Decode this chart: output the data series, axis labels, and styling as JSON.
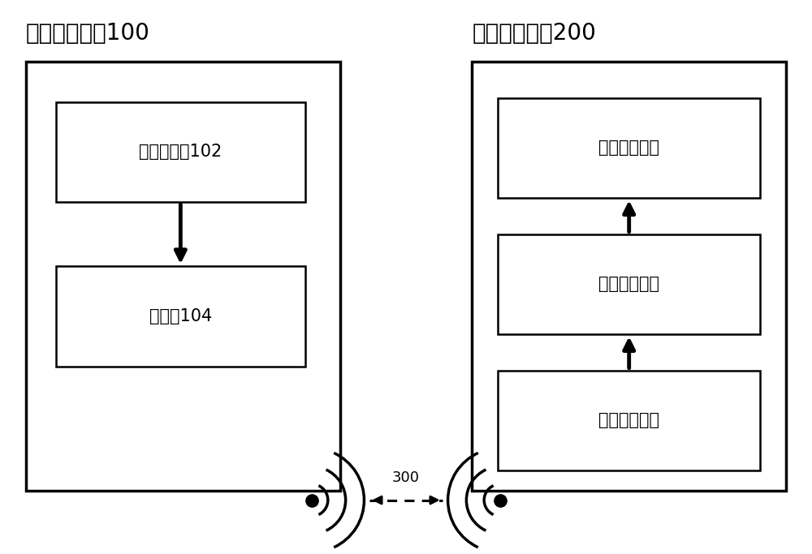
{
  "bg_color": "#ffffff",
  "title_left": "数据采集设备100",
  "title_right": "数据分析设备200",
  "label_300": "300",
  "box_left_label1": "声压传感器102",
  "box_left_label2": "处理器104",
  "box_right_label_top": "数据展示模块",
  "box_right_label_mid": "数据监测模块",
  "box_right_label_bot": "数据分析模块",
  "font_size_title": 20,
  "font_size_box": 15,
  "font_size_label": 13,
  "line_color": "#000000",
  "lw_outer": 2.5,
  "lw_inner": 1.8,
  "lw_arrow": 3.5,
  "lw_arc": 2.5
}
